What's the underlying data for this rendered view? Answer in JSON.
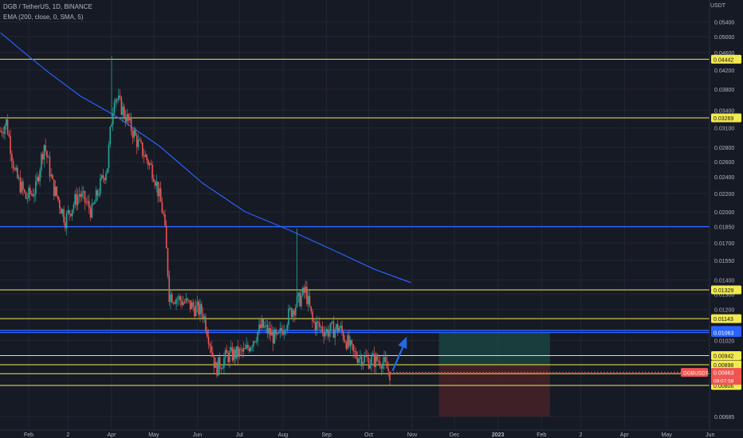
{
  "header": {
    "symbol_line": "DGB / TetherUS, 1D, BINANCE",
    "indicator_line": "EMA (200, close, 0, SMA, 5)"
  },
  "price_axis": {
    "unit": "USDT",
    "ticks": [
      "0.05400",
      "0.05000",
      "0.04600",
      "0.04200",
      "0.03800",
      "0.03400",
      "0.03100",
      "0.02800",
      "0.02600",
      "0.02400",
      "0.02200",
      "0.02000",
      "0.01850",
      "0.01700",
      "0.01550",
      "0.01400",
      "0.01300",
      "0.01200",
      "0.01020",
      "0.00685"
    ]
  },
  "time_axis": {
    "labels": [
      "Feb",
      "2",
      "Apr",
      "May",
      "Jun",
      "Jul",
      "Aug",
      "Sep",
      "Oct",
      "Nov",
      "Dec",
      "2023",
      "Feb",
      "2",
      "Apr",
      "May",
      "Jun"
    ]
  },
  "colors": {
    "background": "#161a25",
    "up_candle": "#26a69a",
    "down_candle": "#ef5350",
    "yellow_level": "#f2e94e",
    "blue_level": "#2962ff",
    "ema_line": "#2962ff",
    "arrow": "#1e6be6",
    "target_zone": "#1b4a44",
    "stop_zone": "#4a2227"
  },
  "chart_data": {
    "type": "candlestick",
    "symbol": "DGB / TetherUS",
    "timeframe": "1D",
    "exchange": "BINANCE",
    "indicator": "EMA (200, close, 0, SMA, 5)",
    "current_price": {
      "symbol_label": "DGBUSDT",
      "value": "0.00863",
      "countdown": "09:07:58"
    },
    "horizontal_levels": [
      {
        "price": "0.04442",
        "color": "yellow"
      },
      {
        "price": "0.03269",
        "color": "yellow"
      },
      {
        "price": "0.01850",
        "color": "blue",
        "label": ""
      },
      {
        "price": "0.01329",
        "color": "yellow"
      },
      {
        "price": "0.01143",
        "color": "yellow"
      },
      {
        "price": "0.01075",
        "color": "blue"
      },
      {
        "price": "0.01063",
        "color": "blue"
      },
      {
        "price": "0.00942",
        "color": "yellow"
      },
      {
        "price": "0.00898",
        "color": "yellow"
      },
      {
        "price": "0.00857",
        "color": "yellow"
      },
      {
        "price": "0.00806",
        "color": "yellow"
      }
    ],
    "ema200": [
      [
        "2022-01-12",
        0.051
      ],
      [
        "2022-01-26",
        0.0468
      ],
      [
        "2022-02-15",
        0.0415
      ],
      [
        "2022-03-10",
        0.0366
      ],
      [
        "2022-04-04",
        0.033
      ],
      [
        "2022-05-05",
        0.0282
      ],
      [
        "2022-06-05",
        0.0232
      ],
      [
        "2022-07-05",
        0.02
      ],
      [
        "2022-08-05",
        0.0182
      ],
      [
        "2022-09-05",
        0.0164
      ],
      [
        "2022-10-05",
        0.0148
      ],
      [
        "2022-10-31",
        0.0138
      ]
    ],
    "price_path": [
      [
        "2022-01-12",
        0.0305
      ],
      [
        "2022-01-16",
        0.032
      ],
      [
        "2022-01-22",
        0.0245
      ],
      [
        "2022-01-30",
        0.0215
      ],
      [
        "2022-02-06",
        0.0225
      ],
      [
        "2022-02-12",
        0.0285
      ],
      [
        "2022-02-18",
        0.023
      ],
      [
        "2022-02-27",
        0.0192
      ],
      [
        "2022-03-09",
        0.022
      ],
      [
        "2022-03-18",
        0.02
      ],
      [
        "2022-03-29",
        0.0255
      ],
      [
        "2022-04-03",
        0.037
      ],
      [
        "2022-04-09",
        0.034
      ],
      [
        "2022-04-20",
        0.0285
      ],
      [
        "2022-05-01",
        0.0245
      ],
      [
        "2022-05-08",
        0.0195
      ],
      [
        "2022-05-12",
        0.013
      ],
      [
        "2022-05-22",
        0.0125
      ],
      [
        "2022-06-05",
        0.0118
      ],
      [
        "2022-06-14",
        0.0088
      ],
      [
        "2022-06-22",
        0.0094
      ],
      [
        "2022-07-05",
        0.0096
      ],
      [
        "2022-07-17",
        0.011
      ],
      [
        "2022-07-28",
        0.0102
      ],
      [
        "2022-08-06",
        0.0118
      ],
      [
        "2022-08-17",
        0.0132
      ],
      [
        "2022-08-22",
        0.0112
      ],
      [
        "2022-09-01",
        0.0107
      ],
      [
        "2022-09-10",
        0.0109
      ],
      [
        "2022-09-20",
        0.0095
      ],
      [
        "2022-10-01",
        0.0092
      ],
      [
        "2022-10-10",
        0.0092
      ],
      [
        "2022-10-16",
        0.0086
      ]
    ],
    "wick_highs": [
      {
        "date": "2022-04-01",
        "high": 0.0452
      },
      {
        "date": "2022-08-11",
        "high": 0.0183
      },
      {
        "date": "2022-05-12",
        "high": 0.0147
      }
    ],
    "projection": {
      "direction": "up",
      "from": [
        "2022-10-18",
        0.0087
      ],
      "to": [
        "2022-10-28",
        0.0104
      ]
    },
    "position_tool": {
      "start": "2022-11-20",
      "end": "2023-02-07",
      "entry": 0.00898,
      "target": 0.01063,
      "stop": 0.00685
    }
  }
}
